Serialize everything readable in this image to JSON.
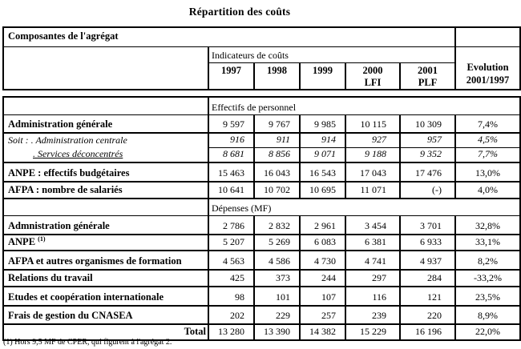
{
  "title": "Répartition des coûts",
  "top_table": {
    "composantes_label": "Composantes de l'agrégat",
    "indicateurs_label": "Indicateurs de coûts",
    "years": [
      {
        "line1": "1997",
        "line2": ""
      },
      {
        "line1": "1998",
        "line2": ""
      },
      {
        "line1": "1999",
        "line2": ""
      },
      {
        "line1": "2000",
        "line2": "LFI"
      },
      {
        "line1": "2001",
        "line2": "PLF"
      }
    ],
    "evolution": {
      "line1": "Evolution",
      "line2": "2001/1997"
    }
  },
  "main_table": {
    "rows": [
      {
        "type": "section",
        "text": "Effectifs de personnel"
      },
      {
        "type": "data",
        "label": "Administration générale",
        "values": [
          "9 597",
          "9 767",
          "9 985",
          "10 115",
          "10 309",
          "7,4%"
        ]
      },
      {
        "type": "sub1",
        "label": "Soit : . Administration centrale",
        "values": [
          "916",
          "911",
          "914",
          "927",
          "957",
          "4,5%"
        ]
      },
      {
        "type": "sub2",
        "label": ". Services déconcentrés",
        "values": [
          "8 681",
          "8 856",
          "9 071",
          "9 188",
          "9 352",
          "7,7%"
        ]
      },
      {
        "type": "data",
        "label": "ANPE : effectifs budgétaires",
        "values": [
          "15 463",
          "16 043",
          "16 543",
          "17 043",
          "17 476",
          "13,0%"
        ]
      },
      {
        "type": "data",
        "label": "AFPA : nombre de salariés",
        "values": [
          "10 641",
          "10 702",
          "10 695",
          "11 071",
          "(-)",
          "4,0%"
        ]
      },
      {
        "type": "section",
        "text": "Dépenses (MF)"
      },
      {
        "type": "data",
        "label": "Admnistration générale",
        "values": [
          "2 786",
          "2 832",
          "2 961",
          "3 454",
          "3 701",
          "32,8%"
        ]
      },
      {
        "type": "data",
        "label": "ANPE",
        "sup": "(1)",
        "values": [
          "5 207",
          "5 269",
          "6 083",
          "6 381",
          "6 933",
          "33,1%"
        ]
      },
      {
        "type": "data",
        "label": "AFPA et autres organismes de formation",
        "values": [
          "4 563",
          "4 586",
          "4 730",
          "4 741",
          "4 937",
          "8,2%"
        ]
      },
      {
        "type": "data",
        "label": "Relations du travail",
        "values": [
          "425",
          "373",
          "244",
          "297",
          "284",
          "-33,2%"
        ]
      },
      {
        "type": "data",
        "label": "Etudes et coopération internationale",
        "values": [
          "98",
          "101",
          "107",
          "116",
          "121",
          "23,5%"
        ]
      },
      {
        "type": "data",
        "label": "Frais de gestion du CNASEA",
        "values": [
          "202",
          "229",
          "257",
          "239",
          "220",
          "8,9%"
        ]
      },
      {
        "type": "total",
        "label": "Total",
        "values": [
          "13 280",
          "13 390",
          "14 382",
          "15 229",
          "16 196",
          "22,0%"
        ]
      }
    ]
  },
  "footnote": "(1) Hors 9,5 MF de CPER, qui figurent à l'agrégat 2."
}
